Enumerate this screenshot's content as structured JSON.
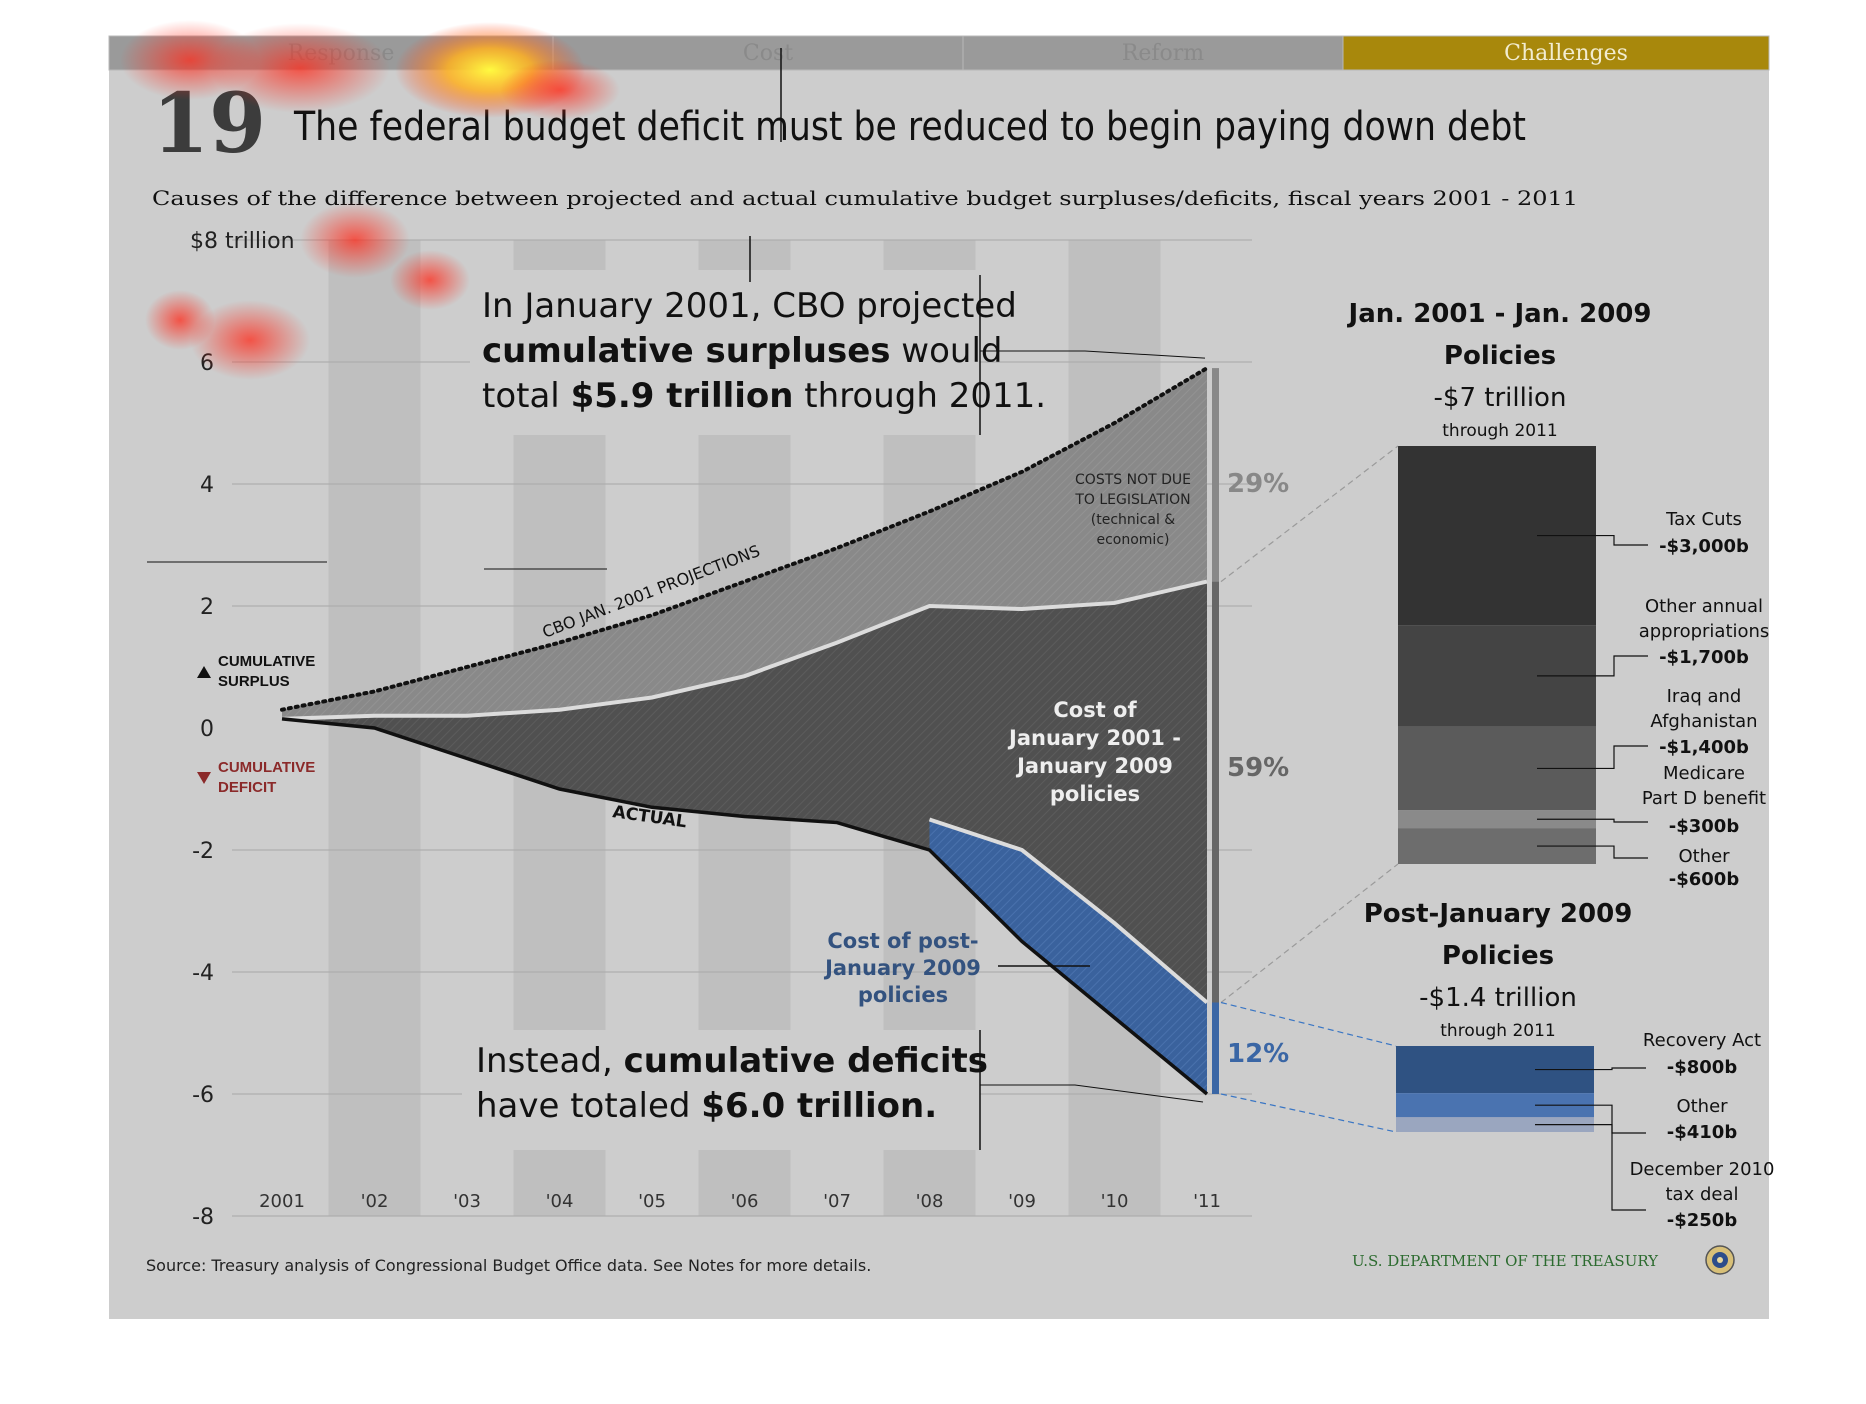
{
  "nav": {
    "tabs": [
      {
        "label": "Response",
        "active": false
      },
      {
        "label": "Cost",
        "active": false
      },
      {
        "label": "Reform",
        "active": false
      },
      {
        "label": "Challenges",
        "active": true
      }
    ]
  },
  "header": {
    "number": "19",
    "title": "The federal budget deficit must be reduced to begin paying down debt",
    "subtitle": "Causes of the difference between projected and actual cumulative budget surpluses/deficits, fiscal years 2001 - 2011"
  },
  "chart_data": {
    "type": "area",
    "x": [
      "2001",
      "'02",
      "'03",
      "'04",
      "'05",
      "'06",
      "'07",
      "'08",
      "'09",
      "'10",
      "'11"
    ],
    "ylim": [
      -8,
      8
    ],
    "yticks": [
      "$8 trillion",
      "6",
      "4",
      "2",
      "0",
      "-2",
      "-4",
      "-6",
      "-8"
    ],
    "series": [
      {
        "name": "CBO JAN. 2001 PROJECTIONS",
        "values": [
          0.3,
          0.6,
          1.0,
          1.4,
          1.85,
          2.4,
          2.95,
          3.55,
          4.2,
          5.0,
          5.9
        ]
      },
      {
        "name": "",
        "values": [
          0.15,
          0.2,
          0.2,
          0.3,
          0.5,
          0.85,
          1.4,
          2.0,
          1.95,
          2.05,
          2.4
        ]
      },
      {
        "name": "",
        "values": [
          0.15,
          0.15,
          0.15,
          0.15,
          0.15,
          0.15,
          -0.5,
          -1.5,
          -2.0,
          -3.2,
          -4.5
        ]
      },
      {
        "name": "ACTUAL",
        "values": [
          0.15,
          0.0,
          -0.5,
          -1.0,
          -1.3,
          -1.45,
          -1.55,
          -2.0,
          -3.5,
          -4.75,
          -6.0
        ]
      }
    ],
    "percentages": [
      {
        "label": "29%",
        "color": "#888888"
      },
      {
        "label": "59%",
        "color": "#666666"
      },
      {
        "label": "12%",
        "color": "#3a66a5"
      }
    ],
    "labels": {
      "projection": "CBO JAN. 2001 PROJECTIONS",
      "actual": "ACTUAL",
      "surplus_line1": "CUMULATIVE",
      "surplus_line2": "SURPLUS",
      "deficit_line1": "CUMULATIVE",
      "deficit_line2": "DEFICIT",
      "costs_not_due": [
        "COSTS NOT DUE",
        "TO LEGISLATION",
        "(technical &",
        "economic)"
      ],
      "cost_2001_2009": [
        "Cost of",
        "January 2001 -",
        "January 2009",
        "policies"
      ],
      "cost_post_2009": [
        "Cost of post-",
        "January 2009",
        "policies"
      ]
    },
    "callout_top": {
      "line1": "In January 2001, CBO projected",
      "line2_bold": "cumulative surpluses",
      "line2_rest": " would",
      "line3_pre": "total ",
      "line3_bold": "$5.9 trillion",
      "line3_rest": " through 2011."
    },
    "callout_bottom": {
      "line1_pre": "Instead, ",
      "line1_bold": "cumulative deficits",
      "line2_pre": "have totaled ",
      "line2_bold": "$6.0 trillion."
    },
    "breakdown_2001_2009": {
      "title_line1": "Jan. 2001 - Jan. 2009",
      "title_line2": "Policies",
      "total": "-$7 trillion",
      "through": "through 2011",
      "items": [
        {
          "name": [
            "Tax Cuts"
          ],
          "value": "-$3,000b",
          "amount": 3000,
          "color": "#333333"
        },
        {
          "name": [
            "Other annual",
            "appropriations"
          ],
          "value": "-$1,700b",
          "amount": 1700,
          "color": "#444444"
        },
        {
          "name": [
            "Iraq and",
            "Afghanistan"
          ],
          "value": "-$1,400b",
          "amount": 1400,
          "color": "#5b5b5b"
        },
        {
          "name": [
            "Medicare",
            "Part D benefit"
          ],
          "value": "-$300b",
          "amount": 300,
          "color": "#8a8a8a"
        },
        {
          "name": [
            "Other"
          ],
          "value": "-$600b",
          "amount": 600,
          "color": "#6d6d6d"
        }
      ]
    },
    "breakdown_post_2009": {
      "title_line1": "Post-January 2009",
      "title_line2": "Policies",
      "total": "-$1.4 trillion",
      "through": "through 2011",
      "items": [
        {
          "name": [
            "Recovery Act"
          ],
          "value": "-$800b",
          "amount": 800,
          "color": "#2f5282"
        },
        {
          "name": [
            "Other"
          ],
          "value": "-$410b",
          "amount": 410,
          "color": "#4a73b0"
        },
        {
          "name": [
            "December 2010",
            "tax deal"
          ],
          "value": "-$250b",
          "amount": 250,
          "color": "#9aa6bf"
        }
      ]
    }
  },
  "footer": {
    "source": "Source: Treasury analysis of Congressional Budget Office data. See Notes for more details.",
    "agency": "U.S. DEPARTMENT OF THE TREASURY"
  },
  "colors": {
    "background": "#cdcdcd",
    "nav": "#9a9a9a",
    "nav_active": "#a8880c",
    "projection_area": "#8a8a8a",
    "policy_area": "#4e4e4e",
    "post_area": "#3c64a0",
    "deficit_label": "#8b2a2a",
    "post_label": "#33527f",
    "treasury_green": "#2c6b2f"
  }
}
